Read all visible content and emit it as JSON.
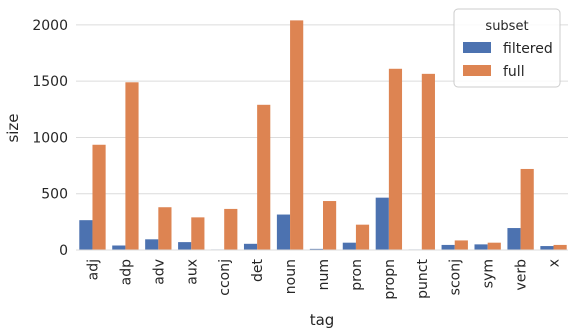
{
  "chart_data": {
    "type": "bar",
    "xlabel": "tag",
    "ylabel": "size",
    "ylim": [
      0,
      2150
    ],
    "yticks": [
      "0",
      "500",
      "1000",
      "1500",
      "2000"
    ],
    "grid": true,
    "legend": {
      "title": "subset",
      "placement": "top-right"
    },
    "categories": [
      "adj",
      "adp",
      "adv",
      "aux",
      "cconj",
      "det",
      "noun",
      "num",
      "pron",
      "propn",
      "punct",
      "sconj",
      "sym",
      "verb",
      "x"
    ],
    "series": [
      {
        "name": "filtered",
        "color": "#4c72b0",
        "values": [
          265,
          40,
          95,
          70,
          5,
          55,
          315,
          10,
          65,
          465,
          5,
          45,
          50,
          195,
          35
        ]
      },
      {
        "name": "full",
        "color": "#dd8452",
        "values": [
          935,
          1490,
          380,
          290,
          365,
          1290,
          2040,
          435,
          225,
          1610,
          1565,
          85,
          65,
          720,
          45
        ]
      }
    ]
  }
}
